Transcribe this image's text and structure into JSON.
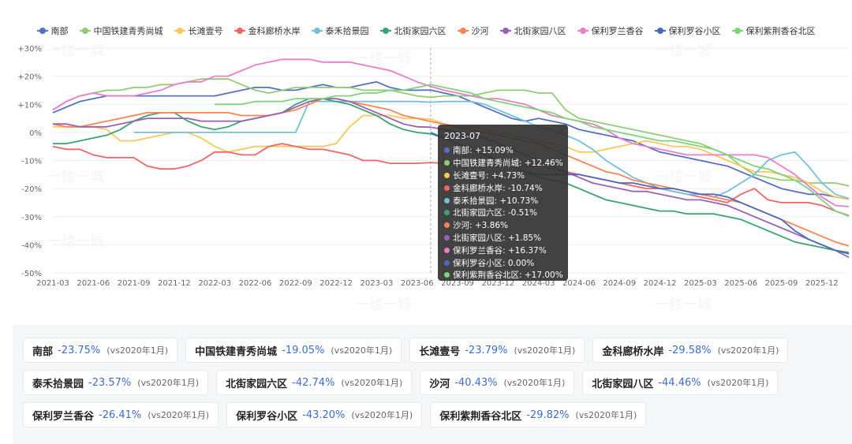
{
  "chart_data": {
    "type": "line",
    "x": [
      "2021-03",
      "2021-04",
      "2021-05",
      "2021-06",
      "2021-07",
      "2021-08",
      "2021-09",
      "2021-10",
      "2021-11",
      "2021-12",
      "2022-01",
      "2022-02",
      "2022-03",
      "2022-04",
      "2022-05",
      "2022-06",
      "2022-07",
      "2022-08",
      "2022-09",
      "2022-10",
      "2022-11",
      "2022-12",
      "2023-01",
      "2023-02",
      "2023-03",
      "2023-04",
      "2023-05",
      "2023-06",
      "2023-07",
      "2023-08",
      "2023-09",
      "2023-10",
      "2023-11",
      "2023-12",
      "2024-01",
      "2024-02",
      "2024-03",
      "2024-04",
      "2024-05",
      "2024-06",
      "2024-07",
      "2024-08",
      "2024-09",
      "2024-10",
      "2024-11",
      "2024-12",
      "2025-01",
      "2025-02",
      "2025-03",
      "2025-04",
      "2025-05",
      "2025-06",
      "2025-07",
      "2025-08",
      "2025-09",
      "2025-10",
      "2025-11",
      "2025-12",
      "2026-01",
      "2026-02"
    ],
    "x_tick_labels": [
      "2021-03",
      "2021-06",
      "2021-09",
      "2021-12",
      "2022-03",
      "2022-06",
      "2022-09",
      "2022-12",
      "2023-03",
      "2023-06",
      "2023-09",
      "2023-12",
      "2024-03",
      "2024-06",
      "2024-09",
      "2024-12",
      "2025-03",
      "2025-06",
      "2025-09",
      "2025-12"
    ],
    "y_tick_labels": [
      "+30%",
      "+20%",
      "+10%",
      "0%",
      "-10%",
      "-20%",
      "-30%",
      "-40%",
      "-50%"
    ],
    "ylim": [
      -50,
      30
    ],
    "grid": true,
    "legend_position": "top",
    "highlight_index": 28,
    "series": [
      {
        "name": "南部",
        "color": "#5470c6",
        "values": [
          7,
          9,
          11,
          12,
          13,
          13,
          13,
          13,
          13,
          13,
          13,
          13,
          13,
          14,
          15,
          16,
          16,
          15,
          15,
          16,
          17,
          16,
          16,
          17,
          18,
          16,
          15,
          15,
          15.09,
          14,
          13,
          11,
          9,
          7,
          5,
          4,
          5,
          4,
          3,
          1,
          0,
          -1,
          -2,
          -3,
          -5,
          -7,
          -8,
          -9,
          -10,
          -11,
          -12,
          -14,
          -16,
          -18,
          -20,
          -21,
          -22,
          -22,
          -23,
          -23.75
        ]
      },
      {
        "name": "中国铁建青秀尚城",
        "color": "#91cc75",
        "values": [
          8,
          11,
          13,
          14,
          15,
          15,
          16,
          16,
          17,
          17,
          18,
          19,
          19,
          19,
          17,
          15,
          14,
          15,
          16,
          16,
          16,
          16,
          16,
          15,
          15,
          15,
          14,
          13,
          12.46,
          13,
          13,
          13,
          14,
          15,
          15,
          15,
          14,
          14,
          8,
          5,
          4,
          3,
          2,
          1,
          0,
          -1,
          -2,
          -3,
          -4,
          -6,
          -8,
          -12,
          -15,
          -16,
          -17,
          -17,
          -18,
          -18,
          -18,
          -19.05
        ]
      },
      {
        "name": "长滩壹号",
        "color": "#fac858",
        "values": [
          2,
          2,
          2,
          2,
          1,
          -3,
          -3,
          -2,
          -1,
          0,
          0,
          -2,
          -5,
          -7,
          -6,
          -5,
          -5,
          -5,
          -5,
          -5,
          -5,
          -4,
          2,
          6,
          6,
          6,
          5,
          5,
          4.73,
          3,
          2,
          2,
          1,
          0,
          -1,
          -2,
          -3,
          -4,
          -5,
          -7,
          -7,
          -6,
          -5,
          -4,
          -3,
          -4,
          -5,
          -5,
          -6,
          -8,
          -10,
          -12,
          -14,
          -14,
          -15,
          -16,
          -18,
          -21,
          -23,
          -23.79
        ]
      },
      {
        "name": "金科廊桥水岸",
        "color": "#ee6666",
        "values": [
          -5,
          -6,
          -6,
          -8,
          -9,
          -9,
          -9,
          -12,
          -13,
          -13,
          -12,
          -10,
          -7,
          -7,
          -8,
          -8,
          -5,
          -4,
          -5,
          -6,
          -6,
          -7,
          -8,
          -10,
          -10,
          -11,
          -11,
          -11,
          -10.74,
          -11,
          -11,
          -11,
          -12,
          -12,
          -12,
          -12,
          -12,
          -13,
          -14,
          -15,
          -16,
          -17,
          -18,
          -19,
          -20,
          -20,
          -21,
          -22,
          -23,
          -24,
          -25,
          -22,
          -20,
          -24,
          -25,
          -25,
          -25,
          -26,
          -28,
          -29.58
        ]
      },
      {
        "name": "泰禾拾景园",
        "color": "#73c0de",
        "values": [
          null,
          null,
          null,
          null,
          null,
          null,
          0,
          0,
          0,
          0,
          0,
          0,
          0,
          0,
          0,
          0,
          0,
          0,
          0,
          11,
          11,
          11,
          11,
          11,
          11,
          11,
          11,
          11,
          10.73,
          11,
          11,
          11,
          10,
          8,
          6,
          4,
          2,
          1,
          -1,
          -3,
          -6,
          -10,
          -13,
          -16,
          -18,
          -20,
          -21,
          -22,
          -22,
          -23,
          -21,
          -18,
          -15,
          -10,
          -8,
          -7,
          -12,
          -18,
          -22,
          -23.57
        ]
      },
      {
        "name": "北街家园六区",
        "color": "#3ba272",
        "values": [
          -4,
          -4,
          -3,
          -2,
          -1,
          1,
          4,
          6,
          7,
          7,
          4,
          2,
          1,
          2,
          4,
          5,
          6,
          7,
          10,
          12,
          12,
          11,
          10,
          8,
          6,
          3,
          1,
          0,
          -0.51,
          -2,
          -4,
          -6,
          -8,
          -10,
          -12,
          -14,
          -16,
          -17,
          -18,
          -20,
          -22,
          -24,
          -25,
          -26,
          -27,
          -28,
          -28,
          -29,
          -29,
          -29,
          -30,
          -31,
          -33,
          -35,
          -37,
          -39,
          -40,
          -41,
          -42,
          -42.74
        ]
      },
      {
        "name": "沙河",
        "color": "#fc8452",
        "values": [
          3,
          2,
          2,
          3,
          4,
          5,
          6,
          7,
          7,
          7,
          7,
          7,
          7,
          7,
          6,
          6,
          6,
          7,
          8,
          10,
          12,
          12,
          11,
          10,
          9,
          8,
          6,
          5,
          3.86,
          3,
          2,
          1,
          0,
          -1,
          -2,
          -3,
          -4,
          -6,
          -8,
          -10,
          -12,
          -14,
          -15,
          -17,
          -18,
          -19,
          -20,
          -21,
          -22,
          -23,
          -24,
          -25,
          -27,
          -29,
          -31,
          -33,
          -35,
          -37,
          -39,
          -40.43
        ]
      },
      {
        "name": "北街家园八区",
        "color": "#9a60b4",
        "values": [
          3,
          3,
          2,
          2,
          2,
          3,
          4,
          5,
          5,
          5,
          5,
          4,
          4,
          4,
          4,
          5,
          6,
          7,
          9,
          11,
          12,
          12,
          11,
          9,
          7,
          5,
          3,
          2,
          1.85,
          1,
          0,
          -1,
          -2,
          -4,
          -6,
          -8,
          -10,
          -12,
          -14,
          -16,
          -18,
          -19,
          -20,
          -21,
          -21,
          -22,
          -23,
          -24,
          -24,
          -25,
          -26,
          -28,
          -30,
          -32,
          -34,
          -36,
          -38,
          -40,
          -42,
          -44.46
        ]
      },
      {
        "name": "保利罗兰香谷",
        "color": "#ea7ccc",
        "values": [
          8,
          11,
          13,
          14,
          13,
          13,
          13,
          14,
          15,
          17,
          18,
          18,
          20,
          20,
          22,
          24,
          25,
          26,
          26,
          26,
          25,
          25,
          25,
          24,
          23,
          22,
          20,
          18,
          16.37,
          15,
          14,
          13,
          12,
          12,
          11,
          10,
          8,
          6,
          5,
          4,
          3,
          1,
          -2,
          -4,
          -5,
          -6,
          -7,
          -8,
          -8,
          -8,
          -8,
          -8,
          -8,
          -9,
          -12,
          -15,
          -19,
          -23,
          -26,
          -26.41
        ]
      },
      {
        "name": "保利罗谷小区",
        "color": "#4a69bd",
        "values": [
          null,
          null,
          null,
          null,
          null,
          null,
          null,
          null,
          null,
          null,
          null,
          null,
          null,
          null,
          null,
          null,
          null,
          null,
          null,
          null,
          null,
          null,
          null,
          null,
          null,
          null,
          null,
          null,
          0,
          -2,
          -4,
          -6,
          -8,
          -10,
          -12,
          -14,
          -15,
          -15,
          -15,
          -15,
          -16,
          -17,
          -18,
          -18,
          -19,
          -20,
          -20,
          -21,
          -22,
          -22,
          -23,
          -25,
          -27,
          -29,
          -31,
          -35,
          -38,
          -40,
          -42,
          -43.2
        ]
      },
      {
        "name": "保利紫荆香谷北区",
        "color": "#7ed37a",
        "values": [
          null,
          null,
          null,
          null,
          null,
          null,
          null,
          null,
          null,
          null,
          null,
          null,
          10,
          10,
          10,
          11,
          11,
          11,
          12,
          12,
          12,
          13,
          13,
          14,
          14,
          15,
          15,
          16,
          17,
          16,
          15,
          14,
          12,
          11,
          10,
          9,
          8,
          7,
          5,
          4,
          2,
          1,
          0,
          -1,
          -2,
          -3,
          -3,
          -4,
          -5,
          -6,
          -8,
          -10,
          -12,
          -13,
          -15,
          -17,
          -20,
          -24,
          -28,
          -29.82
        ]
      }
    ]
  },
  "tooltip": {
    "title": "2023-07",
    "rows": [
      {
        "label": "南部: +15.09%",
        "color": "#5470c6"
      },
      {
        "label": "中国铁建青秀尚城: +12.46%",
        "color": "#91cc75"
      },
      {
        "label": "长滩壹号: +4.73%",
        "color": "#fac858"
      },
      {
        "label": "金科廊桥水岸: -10.74%",
        "color": "#ee6666"
      },
      {
        "label": "泰禾拾景园: +10.73%",
        "color": "#73c0de"
      },
      {
        "label": "北街家园六区: -0.51%",
        "color": "#3ba272"
      },
      {
        "label": "沙河: +3.86%",
        "color": "#fc8452"
      },
      {
        "label": "北街家园八区: +1.85%",
        "color": "#9a60b4"
      },
      {
        "label": "保利罗兰香谷: +16.37%",
        "color": "#ea7ccc"
      },
      {
        "label": "保利罗谷小区: 0.00%",
        "color": "#4a69bd"
      },
      {
        "label": "保利紫荆香谷北区: +17.00%",
        "color": "#7ed37a"
      }
    ]
  },
  "summary": {
    "base_label": "(vs2020年1月)",
    "rows": [
      [
        {
          "name": "南部",
          "value": "-23.75%"
        },
        {
          "name": "中国铁建青秀尚城",
          "value": "-19.05%"
        },
        {
          "name": "长滩壹号",
          "value": "-23.79%"
        },
        {
          "name": "金科廊桥水岸",
          "value": "-29.58%"
        }
      ],
      [
        {
          "name": "泰禾拾景园",
          "value": "-23.57%"
        },
        {
          "name": "北街家园六区",
          "value": "-42.74%"
        },
        {
          "name": "沙河",
          "value": "-40.43%"
        },
        {
          "name": "北街家园八区",
          "value": "-44.46%"
        }
      ],
      [
        {
          "name": "保利罗兰香谷",
          "value": "-26.41%"
        },
        {
          "name": "保利罗谷小区",
          "value": "-43.20%"
        },
        {
          "name": "保利紫荆香谷北区",
          "value": "-29.82%"
        }
      ]
    ]
  },
  "watermark": "一楼一城"
}
